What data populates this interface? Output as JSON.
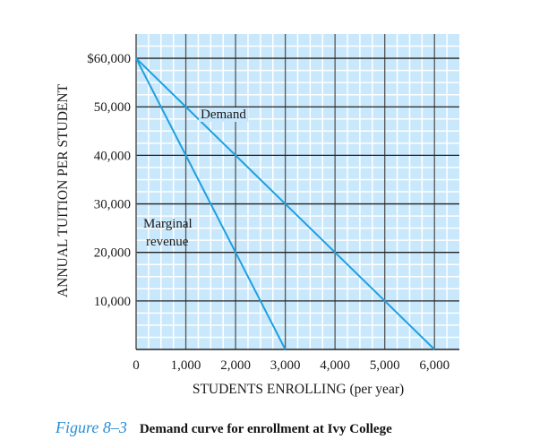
{
  "chart_data": {
    "type": "line",
    "xlabel": "STUDENTS ENROLLING (per year)",
    "ylabel": "ANNUAL TUITION PER STUDENT",
    "xlim": [
      0,
      6500
    ],
    "ylim": [
      0,
      65000
    ],
    "x_ticks": [
      0,
      1000,
      2000,
      3000,
      4000,
      5000,
      6000
    ],
    "x_tick_labels": [
      "0",
      "1,000",
      "2,000",
      "3,000",
      "4,000",
      "5,000",
      "6,000"
    ],
    "y_ticks": [
      10000,
      20000,
      30000,
      40000,
      50000,
      60000
    ],
    "y_tick_labels": [
      "10,000",
      "20,000",
      "30,000",
      "40,000",
      "50,000",
      "$60,000"
    ],
    "grid": true,
    "minor_grid_divisions": 4,
    "background_color": "#c9e8fb",
    "line_color": "#1ea0e0",
    "series": [
      {
        "name": "Demand",
        "x": [
          0,
          1000,
          2000,
          3000,
          4000,
          5000,
          6000
        ],
        "y": [
          60000,
          50000,
          40000,
          30000,
          20000,
          10000,
          0
        ]
      },
      {
        "name": "Marginal revenue",
        "x": [
          0,
          1000,
          2000,
          3000
        ],
        "y": [
          60000,
          40000,
          20000,
          0
        ]
      }
    ],
    "annotations": {
      "demand": "Demand",
      "mr_line1": "Marginal",
      "mr_line2": "revenue"
    }
  },
  "caption": {
    "figure_label": "Figure 8–3",
    "text": "Demand curve for enrollment at Ivy College"
  }
}
